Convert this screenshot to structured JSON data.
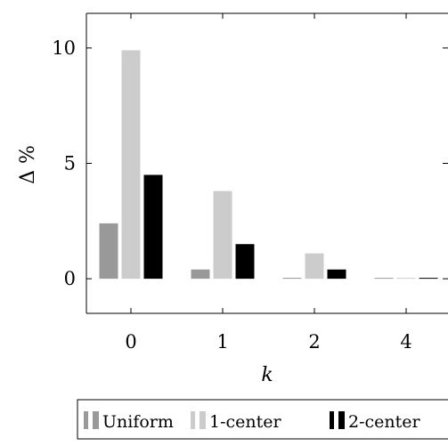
{
  "chart_data": {
    "type": "bar",
    "categories": [
      "0",
      "1",
      "2",
      "4"
    ],
    "series": [
      {
        "name": "Uniform",
        "color": "#999999",
        "values": [
          2.4,
          0.4,
          0.04,
          0.02
        ]
      },
      {
        "name": "1-center",
        "color": "#cccccc",
        "values": [
          9.9,
          3.8,
          1.1,
          0.02
        ]
      },
      {
        "name": "2-center",
        "color": "#000000",
        "values": [
          4.5,
          1.5,
          0.4,
          0.03
        ]
      }
    ],
    "xlabel": "k",
    "ylabel": "Δ %",
    "yticks": [
      "0",
      "5",
      "10"
    ],
    "ytick_values": [
      0,
      5,
      10
    ],
    "ylim": [
      -1.5,
      11.5
    ],
    "legend_position": "bottom"
  }
}
